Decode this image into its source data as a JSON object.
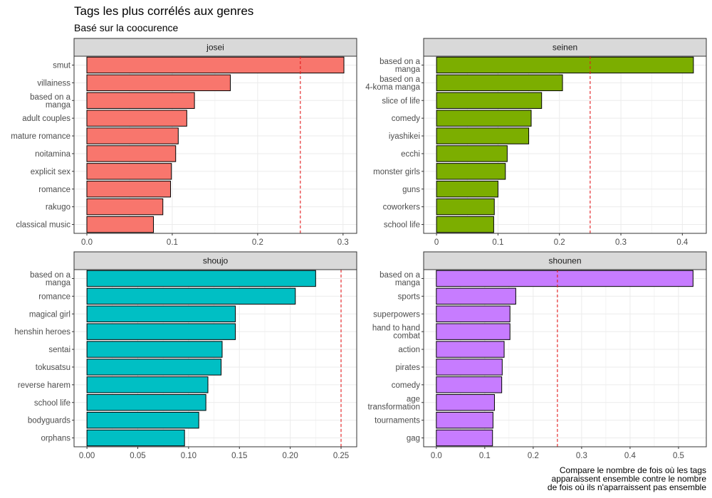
{
  "title": "Tags les plus corrélés aux genres",
  "subtitle": "Basé sur la coocurence",
  "caption": "Compare le nombre de fois où les tags\napparaissent ensemble contre le nombre\nde fois où ils n'aparraissent pas ensemble",
  "colors": {
    "josei": "#F8766D",
    "seinen": "#7CAE00",
    "shoujo": "#00BFC4",
    "shounen": "#C77CFF",
    "reference_line": "#E41A1C",
    "strip_fill": "#D9D9D9"
  },
  "chart_data": [
    {
      "type": "bar",
      "orientation": "horizontal",
      "panel": "josei",
      "categories": [
        "smut",
        "villainess",
        "based on a manga",
        "adult couples",
        "mature romance",
        "noitamina",
        "explicit sex",
        "romance",
        "rakugo",
        "classical music"
      ],
      "values": [
        0.301,
        0.168,
        0.126,
        0.117,
        0.107,
        0.104,
        0.099,
        0.098,
        0.089,
        0.078
      ],
      "xlim": [
        -0.015,
        0.316
      ],
      "xticks": [
        0.0,
        0.1,
        0.2,
        0.3
      ],
      "xtick_labels": [
        "0.0",
        "0.1",
        "0.2",
        "0.3"
      ],
      "reference_x": 0.25,
      "grid": true
    },
    {
      "type": "bar",
      "orientation": "horizontal",
      "panel": "seinen",
      "categories": [
        "based on a manga",
        "based on a 4-koma manga",
        "slice of life",
        "comedy",
        "iyashikei",
        "ecchi",
        "monster girls",
        "guns",
        "coworkers",
        "school life"
      ],
      "values": [
        0.418,
        0.205,
        0.171,
        0.154,
        0.15,
        0.115,
        0.112,
        0.1,
        0.094,
        0.093
      ],
      "xlim": [
        -0.021,
        0.439
      ],
      "xticks": [
        0.0,
        0.1,
        0.2,
        0.3,
        0.4
      ],
      "xtick_labels": [
        "0",
        "0.1",
        "0.2",
        "0.3",
        "0.4"
      ],
      "reference_x": 0.25,
      "grid": true
    },
    {
      "type": "bar",
      "orientation": "horizontal",
      "panel": "shoujo",
      "categories": [
        "based on a manga",
        "romance",
        "magical girl",
        "henshin heroes",
        "sentai",
        "tokusatsu",
        "reverse harem",
        "school life",
        "bodyguards",
        "orphans"
      ],
      "values": [
        0.225,
        0.205,
        0.146,
        0.146,
        0.133,
        0.132,
        0.119,
        0.117,
        0.11,
        0.096
      ],
      "xlim": [
        -0.0127,
        0.2654
      ],
      "xticks": [
        0.0,
        0.05,
        0.1,
        0.15,
        0.2,
        0.25
      ],
      "xtick_labels": [
        "0.00",
        "0.05",
        "0.10",
        "0.15",
        "0.20",
        "0.25"
      ],
      "reference_x": 0.25,
      "grid": true
    },
    {
      "type": "bar",
      "orientation": "horizontal",
      "panel": "shounen",
      "categories": [
        "based on a manga",
        "sports",
        "superpowers",
        "hand to hand combat",
        "action",
        "pirates",
        "comedy",
        "age transformation",
        "tournaments",
        "gag"
      ],
      "values": [
        0.53,
        0.164,
        0.152,
        0.152,
        0.14,
        0.136,
        0.135,
        0.12,
        0.117,
        0.116
      ],
      "xlim": [
        -0.0262,
        0.5574
      ],
      "xticks": [
        0.0,
        0.1,
        0.2,
        0.3,
        0.4,
        0.5
      ],
      "xtick_labels": [
        "0.0",
        "0.1",
        "0.2",
        "0.3",
        "0.4",
        "0.5"
      ],
      "reference_x": 0.25,
      "grid": true
    }
  ]
}
